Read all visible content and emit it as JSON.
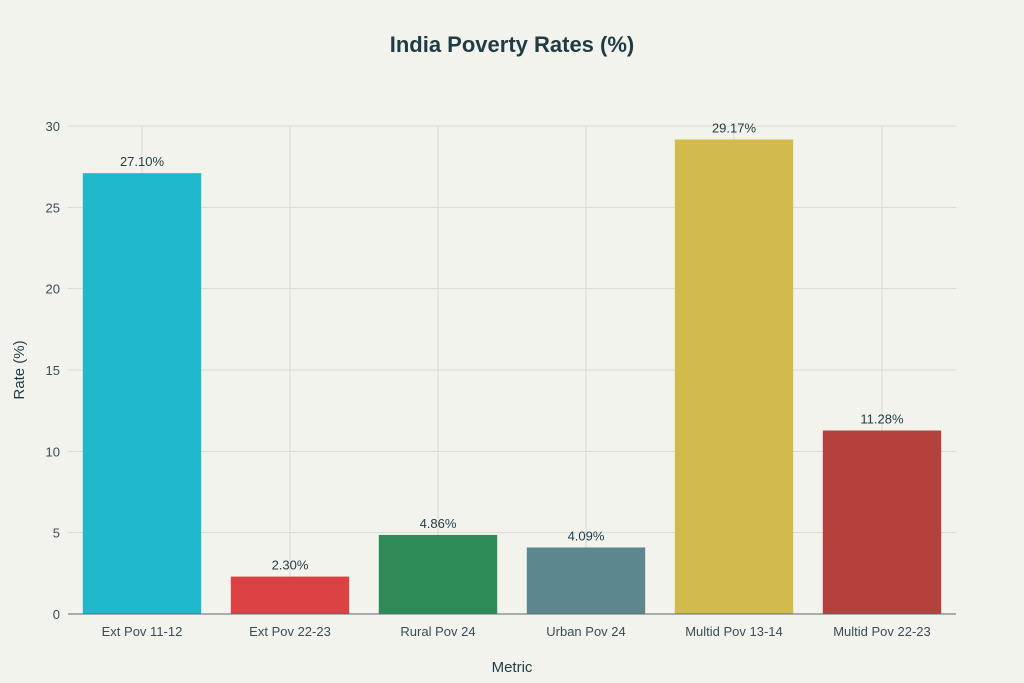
{
  "chart_data": {
    "type": "bar",
    "title": "India Poverty Rates (%)",
    "xlabel": "Metric",
    "ylabel": "Rate (%)",
    "categories": [
      "Ext Pov 11-12",
      "Ext Pov 22-23",
      "Rural Pov 24",
      "Urban Pov 24",
      "Multid Pov 13-14",
      "Multid Pov 22-23"
    ],
    "values": [
      27.1,
      2.3,
      4.86,
      4.09,
      29.17,
      11.28
    ],
    "data_labels": [
      "27.10%",
      "2.30%",
      "4.86%",
      "4.09%",
      "29.17%",
      "11.28%"
    ],
    "colors": [
      "#1fb8cd",
      "#dc4143",
      "#2e8b57",
      "#5d878f",
      "#d2ba4c",
      "#b4413c"
    ],
    "ylim": [
      0,
      30
    ],
    "yticks": [
      0,
      5,
      10,
      15,
      20,
      25,
      30
    ],
    "ytick_labels": [
      "0",
      "5",
      "10",
      "15",
      "20",
      "25",
      "30"
    ],
    "grid": true,
    "legend": "none"
  }
}
